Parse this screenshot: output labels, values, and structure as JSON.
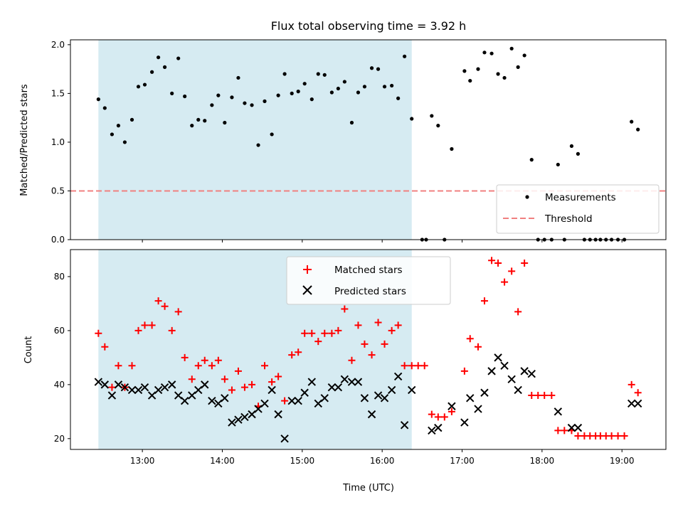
{
  "chart_data": {
    "title": "Flux total observing time = 3.92 h",
    "shading": {
      "x_start_h": 12.45,
      "x_end_h": 16.37,
      "color": "#add8e6"
    },
    "x_axis": {
      "label": "Time (UTC)",
      "range_h": [
        12.1,
        19.55
      ],
      "ticks": [
        {
          "h": 13,
          "label": "13:00"
        },
        {
          "h": 14,
          "label": "14:00"
        },
        {
          "h": 15,
          "label": "15:00"
        },
        {
          "h": 16,
          "label": "16:00"
        },
        {
          "h": 17,
          "label": "17:00"
        },
        {
          "h": 18,
          "label": "18:00"
        },
        {
          "h": 19,
          "label": "19:00"
        }
      ]
    },
    "panels": [
      {
        "type": "scatter",
        "ylabel": "Matched/Predicted stars",
        "ylim": [
          0,
          2.05
        ],
        "yticks": [
          "0.0",
          "0.5",
          "1.0",
          "1.5",
          "2.0"
        ],
        "threshold": {
          "name": "Threshold",
          "value": 0.5,
          "color": "#f08080"
        },
        "series": [
          {
            "name": "Measurements",
            "color": "#000000",
            "marker": "dot",
            "points": [
              [
                12.45,
                1.44
              ],
              [
                12.53,
                1.35
              ],
              [
                12.62,
                1.08
              ],
              [
                12.7,
                1.17
              ],
              [
                12.78,
                1.0
              ],
              [
                12.87,
                1.23
              ],
              [
                12.95,
                1.57
              ],
              [
                13.03,
                1.59
              ],
              [
                13.12,
                1.72
              ],
              [
                13.2,
                1.87
              ],
              [
                13.28,
                1.77
              ],
              [
                13.37,
                1.5
              ],
              [
                13.45,
                1.86
              ],
              [
                13.53,
                1.47
              ],
              [
                13.62,
                1.17
              ],
              [
                13.7,
                1.23
              ],
              [
                13.78,
                1.22
              ],
              [
                13.87,
                1.38
              ],
              [
                13.95,
                1.48
              ],
              [
                14.03,
                1.2
              ],
              [
                14.12,
                1.46
              ],
              [
                14.2,
                1.66
              ],
              [
                14.28,
                1.4
              ],
              [
                14.37,
                1.38
              ],
              [
                14.45,
                0.97
              ],
              [
                14.53,
                1.42
              ],
              [
                14.62,
                1.08
              ],
              [
                14.7,
                1.48
              ],
              [
                14.78,
                1.7
              ],
              [
                14.87,
                1.5
              ],
              [
                14.95,
                1.52
              ],
              [
                15.03,
                1.6
              ],
              [
                15.12,
                1.44
              ],
              [
                15.2,
                1.7
              ],
              [
                15.28,
                1.69
              ],
              [
                15.37,
                1.51
              ],
              [
                15.45,
                1.55
              ],
              [
                15.53,
                1.62
              ],
              [
                15.62,
                1.2
              ],
              [
                15.7,
                1.51
              ],
              [
                15.78,
                1.57
              ],
              [
                15.87,
                1.76
              ],
              [
                15.95,
                1.75
              ],
              [
                16.03,
                1.57
              ],
              [
                16.12,
                1.58
              ],
              [
                16.2,
                1.45
              ],
              [
                16.28,
                1.88
              ],
              [
                16.37,
                1.24
              ],
              [
                16.5,
                0.0
              ],
              [
                16.55,
                0.0
              ],
              [
                16.62,
                1.27
              ],
              [
                16.7,
                1.17
              ],
              [
                16.78,
                0.0
              ],
              [
                16.87,
                0.93
              ],
              [
                17.03,
                1.73
              ],
              [
                17.1,
                1.63
              ],
              [
                17.2,
                1.75
              ],
              [
                17.28,
                1.92
              ],
              [
                17.37,
                1.91
              ],
              [
                17.45,
                1.7
              ],
              [
                17.53,
                1.66
              ],
              [
                17.62,
                1.96
              ],
              [
                17.7,
                1.77
              ],
              [
                17.78,
                1.89
              ],
              [
                17.87,
                0.82
              ],
              [
                17.95,
                0.0
              ],
              [
                18.03,
                0.0
              ],
              [
                18.12,
                0.0
              ],
              [
                18.2,
                0.77
              ],
              [
                18.28,
                0.0
              ],
              [
                18.37,
                0.96
              ],
              [
                18.45,
                0.88
              ],
              [
                18.53,
                0.0
              ],
              [
                18.6,
                0.0
              ],
              [
                18.67,
                0.0
              ],
              [
                18.73,
                0.0
              ],
              [
                18.8,
                0.0
              ],
              [
                18.87,
                0.0
              ],
              [
                18.95,
                0.0
              ],
              [
                19.03,
                0.0
              ],
              [
                19.12,
                1.21
              ],
              [
                19.2,
                1.13
              ]
            ]
          }
        ],
        "legend": {
          "position": "lower right",
          "entries": [
            "Measurements",
            "Threshold"
          ]
        }
      },
      {
        "type": "scatter",
        "ylabel": "Count",
        "ylim": [
          16,
          90
        ],
        "yticks": [
          "20",
          "40",
          "60",
          "80"
        ],
        "series": [
          {
            "name": "Matched stars",
            "color": "#ff0000",
            "marker": "plus",
            "points": [
              [
                12.45,
                59
              ],
              [
                12.53,
                54
              ],
              [
                12.62,
                39
              ],
              [
                12.7,
                47
              ],
              [
                12.78,
                39
              ],
              [
                12.87,
                47
              ],
              [
                12.95,
                60
              ],
              [
                13.03,
                62
              ],
              [
                13.12,
                62
              ],
              [
                13.2,
                71
              ],
              [
                13.28,
                69
              ],
              [
                13.37,
                60
              ],
              [
                13.45,
                67
              ],
              [
                13.53,
                50
              ],
              [
                13.62,
                42
              ],
              [
                13.7,
                47
              ],
              [
                13.78,
                49
              ],
              [
                13.87,
                47
              ],
              [
                13.95,
                49
              ],
              [
                14.03,
                42
              ],
              [
                14.12,
                38
              ],
              [
                14.2,
                45
              ],
              [
                14.28,
                39
              ],
              [
                14.37,
                40
              ],
              [
                14.45,
                32
              ],
              [
                14.53,
                47
              ],
              [
                14.62,
                41
              ],
              [
                14.7,
                43
              ],
              [
                14.78,
                34
              ],
              [
                14.87,
                51
              ],
              [
                14.95,
                52
              ],
              [
                15.03,
                59
              ],
              [
                15.12,
                59
              ],
              [
                15.2,
                56
              ],
              [
                15.28,
                59
              ],
              [
                15.37,
                59
              ],
              [
                15.45,
                60
              ],
              [
                15.53,
                68
              ],
              [
                15.62,
                49
              ],
              [
                15.7,
                62
              ],
              [
                15.78,
                55
              ],
              [
                15.87,
                51
              ],
              [
                15.95,
                63
              ],
              [
                16.03,
                55
              ],
              [
                16.12,
                60
              ],
              [
                16.2,
                62
              ],
              [
                16.28,
                47
              ],
              [
                16.37,
                47
              ],
              [
                16.45,
                47
              ],
              [
                16.53,
                47
              ],
              [
                16.62,
                29
              ],
              [
                16.7,
                28
              ],
              [
                16.78,
                28
              ],
              [
                16.87,
                30
              ],
              [
                17.03,
                45
              ],
              [
                17.1,
                57
              ],
              [
                17.2,
                54
              ],
              [
                17.28,
                71
              ],
              [
                17.37,
                86
              ],
              [
                17.45,
                85
              ],
              [
                17.53,
                78
              ],
              [
                17.62,
                82
              ],
              [
                17.7,
                67
              ],
              [
                17.78,
                85
              ],
              [
                17.87,
                36
              ],
              [
                17.95,
                36
              ],
              [
                18.03,
                36
              ],
              [
                18.12,
                36
              ],
              [
                18.2,
                23
              ],
              [
                18.28,
                23
              ],
              [
                18.37,
                23
              ],
              [
                18.45,
                21
              ],
              [
                18.53,
                21
              ],
              [
                18.6,
                21
              ],
              [
                18.67,
                21
              ],
              [
                18.73,
                21
              ],
              [
                18.8,
                21
              ],
              [
                18.87,
                21
              ],
              [
                18.95,
                21
              ],
              [
                19.03,
                21
              ],
              [
                19.12,
                40
              ],
              [
                19.2,
                37
              ]
            ]
          },
          {
            "name": "Predicted stars",
            "color": "#000000",
            "marker": "x",
            "points": [
              [
                12.45,
                41
              ],
              [
                12.53,
                40
              ],
              [
                12.62,
                36
              ],
              [
                12.7,
                40
              ],
              [
                12.78,
                39
              ],
              [
                12.87,
                38
              ],
              [
                12.95,
                38
              ],
              [
                13.03,
                39
              ],
              [
                13.12,
                36
              ],
              [
                13.2,
                38
              ],
              [
                13.28,
                39
              ],
              [
                13.37,
                40
              ],
              [
                13.45,
                36
              ],
              [
                13.53,
                34
              ],
              [
                13.62,
                36
              ],
              [
                13.7,
                38
              ],
              [
                13.78,
                40
              ],
              [
                13.87,
                34
              ],
              [
                13.95,
                33
              ],
              [
                14.03,
                35
              ],
              [
                14.12,
                26
              ],
              [
                14.2,
                27
              ],
              [
                14.28,
                28
              ],
              [
                14.37,
                29
              ],
              [
                14.45,
                31
              ],
              [
                14.53,
                33
              ],
              [
                14.62,
                38
              ],
              [
                14.7,
                29
              ],
              [
                14.78,
                20
              ],
              [
                14.87,
                34
              ],
              [
                14.95,
                34
              ],
              [
                15.03,
                37
              ],
              [
                15.12,
                41
              ],
              [
                15.2,
                33
              ],
              [
                15.28,
                35
              ],
              [
                15.37,
                39
              ],
              [
                15.45,
                39
              ],
              [
                15.53,
                42
              ],
              [
                15.62,
                41
              ],
              [
                15.7,
                41
              ],
              [
                15.78,
                35
              ],
              [
                15.87,
                29
              ],
              [
                15.95,
                36
              ],
              [
                16.03,
                35
              ],
              [
                16.12,
                38
              ],
              [
                16.2,
                43
              ],
              [
                16.28,
                25
              ],
              [
                16.37,
                38
              ],
              [
                16.62,
                23
              ],
              [
                16.7,
                24
              ],
              [
                16.87,
                32
              ],
              [
                17.03,
                26
              ],
              [
                17.1,
                35
              ],
              [
                17.2,
                31
              ],
              [
                17.28,
                37
              ],
              [
                17.37,
                45
              ],
              [
                17.45,
                50
              ],
              [
                17.53,
                47
              ],
              [
                17.62,
                42
              ],
              [
                17.7,
                38
              ],
              [
                17.78,
                45
              ],
              [
                17.87,
                44
              ],
              [
                18.2,
                30
              ],
              [
                18.37,
                24
              ],
              [
                18.45,
                24
              ],
              [
                19.12,
                33
              ],
              [
                19.2,
                33
              ]
            ]
          }
        ],
        "legend": {
          "position": "upper center",
          "entries": [
            "Matched stars",
            "Predicted stars"
          ]
        }
      }
    ]
  }
}
